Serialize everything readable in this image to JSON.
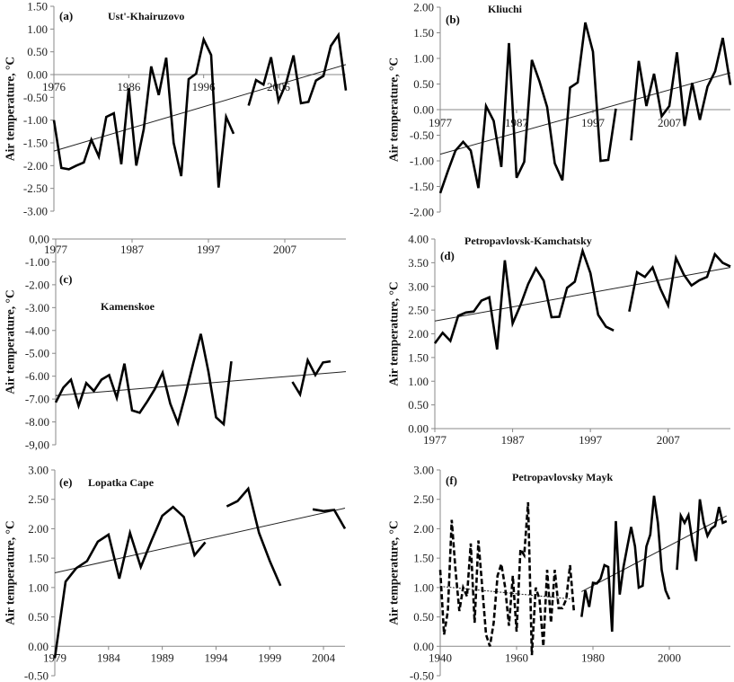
{
  "chart_data": [
    {
      "type": "line",
      "panel": "(a)",
      "title": "Ust'-Khairuzovo",
      "ylabel": "Air temperature, °C",
      "xlim": [
        1976,
        2015
      ],
      "ylim": [
        -3.0,
        1.5
      ],
      "xticks": [
        "1976",
        "1986",
        "1996",
        "2006"
      ],
      "xtick_values": [
        1976,
        1986,
        1996,
        2006
      ],
      "yticks": [
        "1.50",
        "1.00",
        "0.50",
        "0.00",
        "-0.50",
        "-1.00",
        "-1.50",
        "-2.00",
        "-2.50",
        "-3.00"
      ],
      "x_start": 1976,
      "series": [
        {
          "style": "solid",
          "values": [
            -1.0,
            -2.05,
            -2.08,
            -2.0,
            -1.93,
            -1.43,
            -1.8,
            -0.93,
            -0.85,
            -1.97,
            -0.3,
            -2.0,
            -1.2,
            0.18,
            -0.45,
            0.37,
            -1.5,
            -2.23,
            -0.1,
            0.02,
            0.77,
            0.43,
            -2.48,
            -0.93,
            -1.3,
            null,
            -0.68,
            -0.12,
            -0.22,
            0.38,
            -0.58,
            -0.2,
            0.42,
            -0.63,
            -0.6,
            -0.13,
            -0.03,
            0.63,
            0.87,
            -0.35
          ]
        }
      ],
      "trends": [
        {
          "style": "solid",
          "points": [
            [
              1976,
              -1.68
            ],
            [
              2015,
              0.22
            ]
          ]
        }
      ]
    },
    {
      "type": "line",
      "panel": "(b)",
      "title": "Kliuchi",
      "ylabel": "Air temperature, °C",
      "xlim": [
        1977,
        2015
      ],
      "ylim": [
        -2.0,
        2.0
      ],
      "xticks": [
        "1977",
        "1987",
        "1997",
        "2007"
      ],
      "xtick_values": [
        1977,
        1987,
        1997,
        2007
      ],
      "yticks": [
        "2.00",
        "1.50",
        "1.00",
        "0.50",
        "0.00",
        "-0.50",
        "-1.00",
        "-1.50",
        "-2.00"
      ],
      "x_start": 1977,
      "series": [
        {
          "style": "solid",
          "values": [
            -1.63,
            -1.2,
            -0.8,
            -0.63,
            -0.8,
            -1.53,
            0.07,
            -0.22,
            -1.12,
            1.3,
            -1.33,
            -1.02,
            0.97,
            0.55,
            0.05,
            -1.05,
            -1.38,
            0.43,
            0.53,
            1.7,
            1.13,
            -1.0,
            -0.98,
            0.02,
            null,
            -0.6,
            0.95,
            0.07,
            0.7,
            -0.13,
            0.07,
            1.12,
            -0.32,
            0.52,
            -0.2,
            0.45,
            0.75,
            1.4,
            0.48
          ]
        }
      ],
      "trends": [
        {
          "style": "solid",
          "points": [
            [
              1977,
              -0.87
            ],
            [
              2015,
              0.72
            ]
          ]
        }
      ]
    },
    {
      "type": "line",
      "panel": "(c)",
      "title": "Kamenskoe",
      "ylabel": "Air temperature, °C",
      "xlim": [
        1977,
        2015
      ],
      "ylim": [
        -9.0,
        0.0
      ],
      "xticks": [
        "1977",
        "1987",
        "1997",
        "2007"
      ],
      "xtick_values": [
        1977,
        1987,
        1997,
        2007
      ],
      "yticks": [
        "0,00",
        "-1.00",
        "-2.00",
        "-3.00",
        "-4.00",
        "-5.00",
        "-6.00",
        "-7.00",
        "-8.00",
        "-9,00"
      ],
      "x_start": 1977,
      "series": [
        {
          "style": "solid",
          "values": [
            -7.15,
            -6.5,
            -6.15,
            -7.3,
            -6.3,
            -6.65,
            -6.15,
            -5.95,
            -6.95,
            -5.45,
            -7.5,
            -7.6,
            -7.1,
            -6.55,
            -5.85,
            -7.2,
            -8.05,
            -6.8,
            -5.45,
            -4.15,
            -5.8,
            -7.8,
            -8.1,
            -5.35,
            null,
            null,
            null,
            null,
            null,
            null,
            null,
            -6.25,
            -6.8,
            -5.3,
            -5.95,
            -5.4,
            -5.35
          ]
        }
      ],
      "trends": [
        {
          "style": "solid",
          "points": [
            [
              1977,
              -6.85
            ],
            [
              2015,
              -5.8
            ]
          ]
        }
      ]
    },
    {
      "type": "line",
      "panel": "(d)",
      "title": "Petropavlovsk-Kamchatsky",
      "ylabel": "Air temperature, °C",
      "xlim": [
        1977,
        2015
      ],
      "ylim": [
        0.0,
        4.0
      ],
      "xticks": [
        "1977",
        "1987",
        "1997",
        "2007"
      ],
      "xtick_values": [
        1977,
        1987,
        1997,
        2007
      ],
      "yticks": [
        "4.00",
        "3.50",
        "3.00",
        "2.50",
        "2.00",
        "1.50",
        "1.00",
        "0.50",
        "0.00"
      ],
      "x_start": 1977,
      "series": [
        {
          "style": "solid",
          "values": [
            1.8,
            2.02,
            1.85,
            2.38,
            2.45,
            2.47,
            2.7,
            2.77,
            1.67,
            3.55,
            2.22,
            2.6,
            3.05,
            3.38,
            3.12,
            2.35,
            2.36,
            2.97,
            3.1,
            3.75,
            3.28,
            2.4,
            2.15,
            2.07,
            null,
            2.47,
            3.3,
            3.2,
            3.4,
            2.95,
            2.6,
            3.6,
            3.25,
            3.02,
            3.13,
            3.2,
            3.68,
            3.5,
            3.42
          ]
        }
      ],
      "trends": [
        {
          "style": "solid",
          "points": [
            [
              1977,
              2.27
            ],
            [
              2015,
              3.4
            ]
          ]
        }
      ]
    },
    {
      "type": "line",
      "panel": "(e)",
      "title": "Lopatka Cape",
      "ylabel": "Air temperature, °C",
      "xlim": [
        1979,
        2006
      ],
      "ylim": [
        -0.5,
        3.0
      ],
      "xticks": [
        "1979",
        "1984",
        "1989",
        "1994",
        "1999",
        "2004"
      ],
      "xtick_values": [
        1979,
        1984,
        1989,
        1994,
        1999,
        2004
      ],
      "yticks": [
        "3.00",
        "2.50",
        "2.00",
        "1.50",
        "1.00",
        "0.50",
        "0.00",
        "-0.50"
      ],
      "x_start": 1979,
      "series": [
        {
          "style": "solid",
          "values": [
            -0.2,
            1.1,
            1.33,
            1.45,
            1.78,
            1.9,
            1.15,
            1.93,
            1.35,
            1.8,
            2.22,
            2.37,
            2.2,
            1.55,
            1.77,
            null,
            2.38,
            2.47,
            2.68,
            1.93,
            1.45,
            1.03,
            null,
            null,
            2.33,
            2.3,
            2.32,
            2.0
          ]
        }
      ],
      "trends": [
        {
          "style": "solid",
          "points": [
            [
              1979,
              1.25
            ],
            [
              2006,
              2.35
            ]
          ]
        }
      ]
    },
    {
      "type": "line",
      "panel": "(f)",
      "title": "Petropavlovsky Mayk",
      "ylabel": "Air temperature, °C",
      "xlim": [
        1940,
        2016
      ],
      "ylim": [
        -0.5,
        3.0
      ],
      "xticks": [
        "1940",
        "1960",
        "1980",
        "2000"
      ],
      "xtick_values": [
        1940,
        1960,
        1980,
        2000
      ],
      "yticks": [
        "3.00",
        "2.50",
        "2.00",
        "1.50",
        "1.00",
        "0.50",
        "0.00",
        "-0.50"
      ],
      "x_start": 1940,
      "series": [
        {
          "style": "dashed",
          "x_start": 1940,
          "values": [
            1.3,
            0.2,
            0.6,
            2.15,
            1.3,
            0.6,
            1.0,
            0.85,
            1.75,
            0.4,
            1.8,
            1.0,
            0.2,
            0.0,
            0.4,
            1.2,
            1.4,
            1.0,
            0.35,
            1.2,
            0.25,
            1.65,
            1.55,
            2.45,
            -0.15,
            1.0,
            0.8,
            0.0,
            1.3,
            0.4,
            1.3,
            0.65,
            0.65,
            0.8,
            1.38,
            0.6
          ]
        },
        {
          "style": "solid",
          "x_start": 1977,
          "values": [
            0.5,
            0.95,
            0.67,
            1.08,
            1.07,
            1.15,
            1.38,
            1.35,
            0.25,
            2.13,
            0.88,
            1.35,
            1.7,
            2.03,
            1.7,
            1.0,
            1.03,
            1.7,
            1.9,
            2.56,
            2.1,
            1.3,
            0.95,
            0.8,
            null,
            1.3,
            2.22,
            2.1,
            2.23,
            1.8,
            1.45,
            2.5,
            2.1,
            1.88,
            2.0,
            2.05,
            2.37,
            2.1,
            2.13
          ]
        }
      ],
      "trends": [
        {
          "style": "dotted",
          "points": [
            [
              1940,
              1.02
            ],
            [
              1975,
              0.8
            ]
          ]
        },
        {
          "style": "solid",
          "points": [
            [
              1977,
              0.93
            ],
            [
              2015,
              2.22
            ]
          ]
        }
      ]
    }
  ]
}
